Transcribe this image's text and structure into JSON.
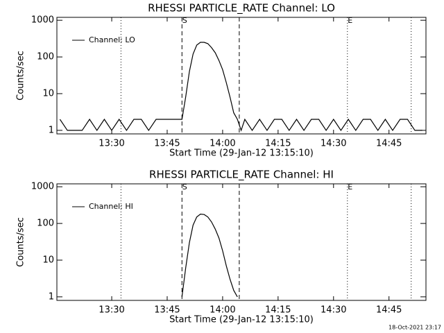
{
  "footer": "18-Oct-2021 23:17",
  "chart_data": [
    {
      "type": "line",
      "title": "RHESSI PARTICLE_RATE Channel: LO",
      "xlabel": "Start Time (29-Jan-12 13:15:10)",
      "ylabel": "Counts/sec",
      "xlim": [
        "13:15:10",
        "14:55:00"
      ],
      "xticks": [
        "13:30",
        "13:45",
        "14:00",
        "14:15",
        "14:30",
        "14:45"
      ],
      "ylim": [
        0.8,
        1200
      ],
      "yticks": [
        1,
        10,
        100,
        1000
      ],
      "log_y": true,
      "legend": "upper left",
      "x": [
        "13:16",
        "13:18",
        "13:20",
        "13:22",
        "13:24",
        "13:26",
        "13:28",
        "13:30",
        "13:32",
        "13:34",
        "13:36",
        "13:38",
        "13:40",
        "13:42",
        "13:44",
        "13:46",
        "13:47",
        "13:48",
        "13:49",
        "13:50",
        "13:51",
        "13:52",
        "13:53",
        "13:54",
        "13:55",
        "13:56",
        "13:57",
        "13:58",
        "13:59",
        "14:00",
        "14:01",
        "14:02",
        "14:03",
        "14:04",
        "14:05",
        "14:06",
        "14:08",
        "14:10",
        "14:12",
        "14:14",
        "14:16",
        "14:18",
        "14:20",
        "14:22",
        "14:24",
        "14:26",
        "14:28",
        "14:30",
        "14:32",
        "14:34",
        "14:36",
        "14:38",
        "14:40",
        "14:42",
        "14:44",
        "14:46",
        "14:48",
        "14:50",
        "14:52",
        "14:54"
      ],
      "series": [
        {
          "name": "Channel: LO",
          "color": "#000000",
          "values": [
            2,
            1,
            1,
            1,
            2,
            1,
            2,
            1,
            2,
            1,
            2,
            2,
            1,
            2,
            2,
            2,
            2,
            2,
            2,
            8,
            40,
            120,
            210,
            250,
            250,
            230,
            180,
            130,
            80,
            45,
            20,
            8,
            3,
            2,
            1,
            2,
            1,
            2,
            1,
            2,
            2,
            1,
            2,
            1,
            2,
            2,
            1,
            2,
            1,
            2,
            1,
            2,
            2,
            1,
            2,
            1,
            2,
            2,
            1,
            1
          ]
        }
      ],
      "vlines": [
        {
          "x": "13:32:30",
          "style": "dotted"
        },
        {
          "x": "13:49:00",
          "style": "dashed"
        },
        {
          "x": "14:04:30",
          "style": "dashed"
        },
        {
          "x": "14:33:45",
          "style": "dotted"
        },
        {
          "x": "14:51:00",
          "style": "dotted"
        }
      ],
      "annotations": [
        {
          "text": "S",
          "x": "13:49:00"
        },
        {
          "text": "E",
          "x": "14:33:45"
        }
      ]
    },
    {
      "type": "line",
      "title": "RHESSI PARTICLE_RATE Channel: HI",
      "xlabel": "Start Time (29-Jan-12 13:15:10)",
      "ylabel": "Counts/sec",
      "xlim": [
        "13:15:10",
        "14:55:00"
      ],
      "xticks": [
        "13:30",
        "13:45",
        "14:00",
        "14:15",
        "14:30",
        "14:45"
      ],
      "ylim": [
        0.8,
        1200
      ],
      "yticks": [
        1,
        10,
        100,
        1000
      ],
      "log_y": true,
      "legend": "upper left",
      "x": [
        "13:49",
        "13:50",
        "13:51",
        "13:52",
        "13:53",
        "13:54",
        "13:55",
        "13:56",
        "13:57",
        "13:58",
        "13:59",
        "14:00",
        "14:01",
        "14:02",
        "14:03",
        "14:04"
      ],
      "series": [
        {
          "name": "Channel: HI",
          "color": "#000000",
          "values": [
            1,
            6,
            30,
            90,
            150,
            180,
            175,
            150,
            110,
            70,
            40,
            18,
            7,
            3,
            1.5,
            1
          ]
        }
      ],
      "vlines": [
        {
          "x": "13:32:30",
          "style": "dotted"
        },
        {
          "x": "13:49:00",
          "style": "dashed"
        },
        {
          "x": "14:04:30",
          "style": "dashed"
        },
        {
          "x": "14:33:45",
          "style": "dotted"
        },
        {
          "x": "14:51:00",
          "style": "dotted"
        }
      ],
      "annotations": [
        {
          "text": "S",
          "x": "13:49:00"
        },
        {
          "text": "E",
          "x": "14:33:45"
        }
      ]
    }
  ]
}
